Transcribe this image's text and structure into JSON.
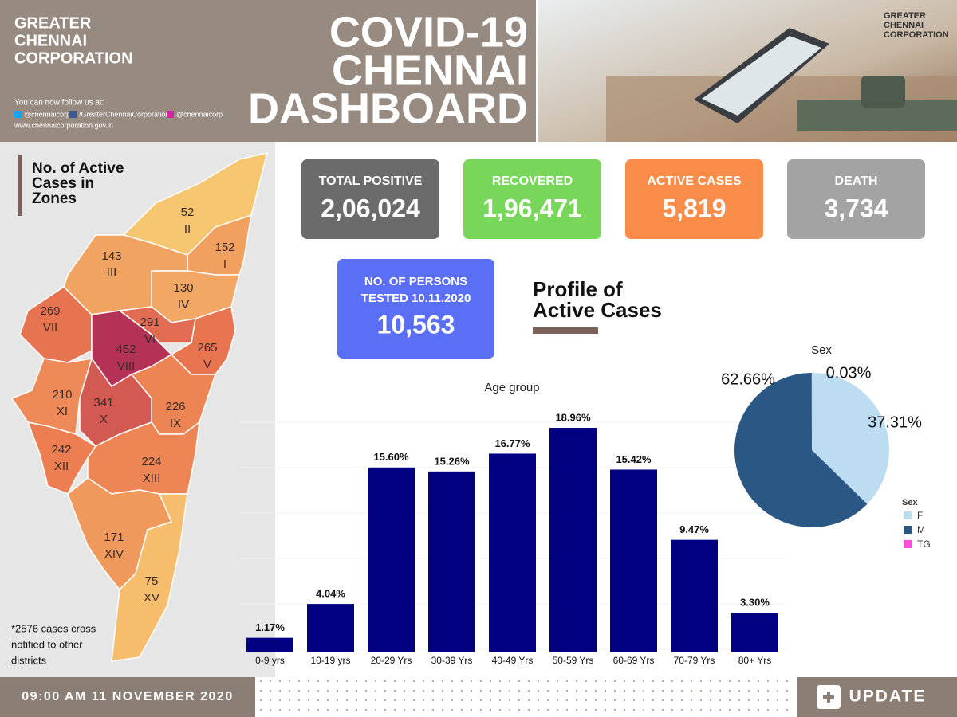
{
  "header": {
    "org_lines": [
      "GREATER",
      "CHENNAI",
      "CORPORATION"
    ],
    "follow": "You can now follow us at:",
    "twitter": "@chennaicorp",
    "facebook": "/GreaterChennaiCorporation",
    "instagram": "@chennaicorp",
    "website": "www.chennaicorporation.gov.in",
    "title_lines": [
      "COVID-19",
      "CHENNAI",
      "DASHBOARD"
    ],
    "logo_lines": [
      "GREATER",
      "CHENNAI",
      "CORPORATION"
    ]
  },
  "map": {
    "title_lines": [
      "No. of Active",
      "Cases in",
      "Zones"
    ],
    "zones": [
      {
        "zone": "I",
        "value": 152
      },
      {
        "zone": "II",
        "value": 52
      },
      {
        "zone": "III",
        "value": 143
      },
      {
        "zone": "IV",
        "value": 130
      },
      {
        "zone": "V",
        "value": 265
      },
      {
        "zone": "VI",
        "value": 291
      },
      {
        "zone": "VII",
        "value": 269
      },
      {
        "zone": "VIII",
        "value": 452
      },
      {
        "zone": "IX",
        "value": 226
      },
      {
        "zone": "X",
        "value": 341
      },
      {
        "zone": "XI",
        "value": 210
      },
      {
        "zone": "XII",
        "value": 242
      },
      {
        "zone": "XIII",
        "value": 224
      },
      {
        "zone": "XIV",
        "value": 171
      },
      {
        "zone": "XV",
        "value": 75
      }
    ],
    "note_lines": [
      "*2576 cases cross",
      "notified to other",
      "districts"
    ]
  },
  "stats": [
    {
      "label": "TOTAL POSITIVE",
      "value": "2,06,024",
      "color": "#6b6b6b"
    },
    {
      "label": "RECOVERED",
      "value": "1,96,471",
      "color": "#78d65a"
    },
    {
      "label": "ACTIVE CASES",
      "value": "5,819",
      "color": "#fa8c4a"
    },
    {
      "label": "DEATH",
      "value": "3,734",
      "color": "#a3a3a3"
    }
  ],
  "tested": {
    "label_lines": [
      "NO. OF PERSONS",
      "TESTED 10.11.2020"
    ],
    "value": "10,563",
    "color": "#5a6ff5"
  },
  "profile_title_lines": [
    "Profile of",
    "Active Cases"
  ],
  "chart_data": [
    {
      "type": "bar",
      "title": "Age group",
      "categories": [
        "0-9 yrs",
        "10-19 yrs",
        "20-29 Yrs",
        "30-39 Yrs",
        "40-49 Yrs",
        "50-59 Yrs",
        "60-69 Yrs",
        "70-79 Yrs",
        "80+ Yrs"
      ],
      "values": [
        1.17,
        4.04,
        15.6,
        15.26,
        16.77,
        18.96,
        15.42,
        9.47,
        3.3
      ],
      "value_labels": [
        "1.17%",
        "4.04%",
        "15.60%",
        "15.26%",
        "16.77%",
        "18.96%",
        "15.42%",
        "9.47%",
        "3.30%"
      ],
      "color": "#000080"
    },
    {
      "type": "pie",
      "title": "Sex",
      "legend_title": "Sex",
      "categories": [
        "F",
        "M",
        "TG"
      ],
      "values": [
        37.31,
        62.66,
        0.03
      ],
      "value_labels": [
        "37.31%",
        "62.66%",
        "0.03%"
      ],
      "colors": [
        "#bcdcf2",
        "#2a5783",
        "#ff4fd8"
      ]
    }
  ],
  "footer": {
    "datetime": "09:00 AM 11 NOVEMBER 2020",
    "update": "UPDATE"
  }
}
